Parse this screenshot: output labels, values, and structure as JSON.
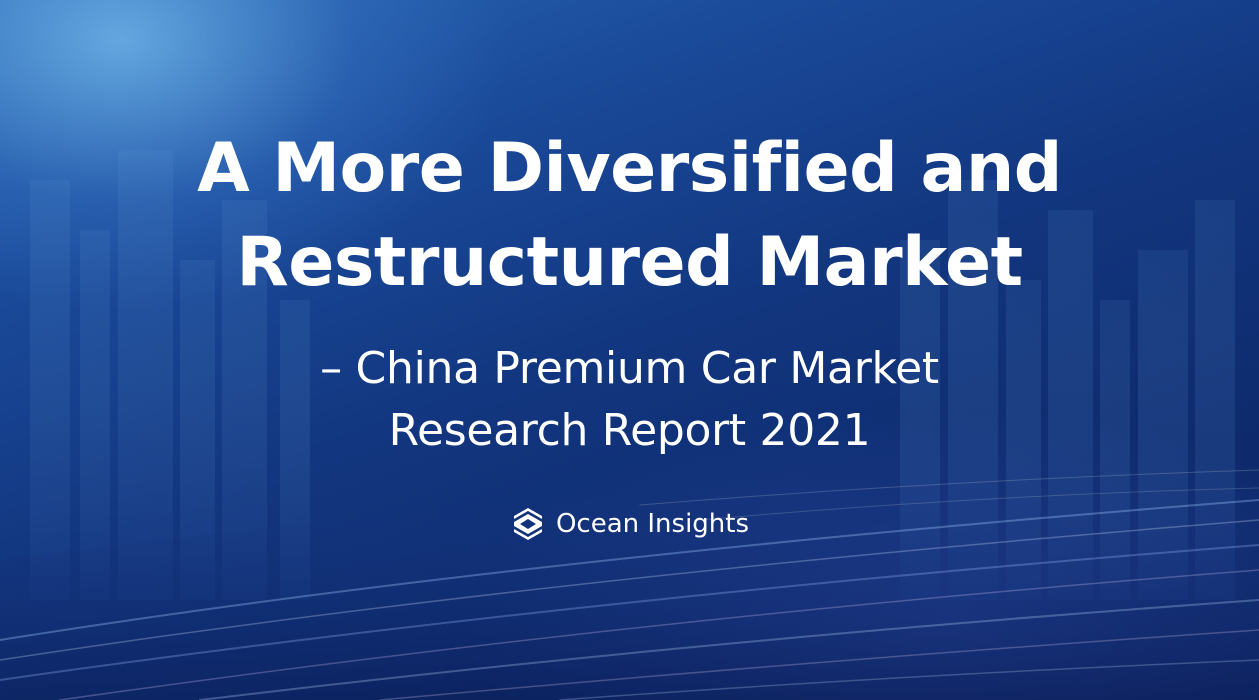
{
  "slide": {
    "title_line_1": "A More Diversified and",
    "title_line_2": "Restructured Market",
    "subtitle_line_1": "– China Premium Car Market",
    "subtitle_line_2": "Research Report 2021",
    "brand_name": "Ocean Insights",
    "brand_icon": "ocean-insights-logo-icon"
  },
  "colors": {
    "text": "#ffffff",
    "background_dark": "#0c2462",
    "background_light": "#2a6bb6"
  }
}
